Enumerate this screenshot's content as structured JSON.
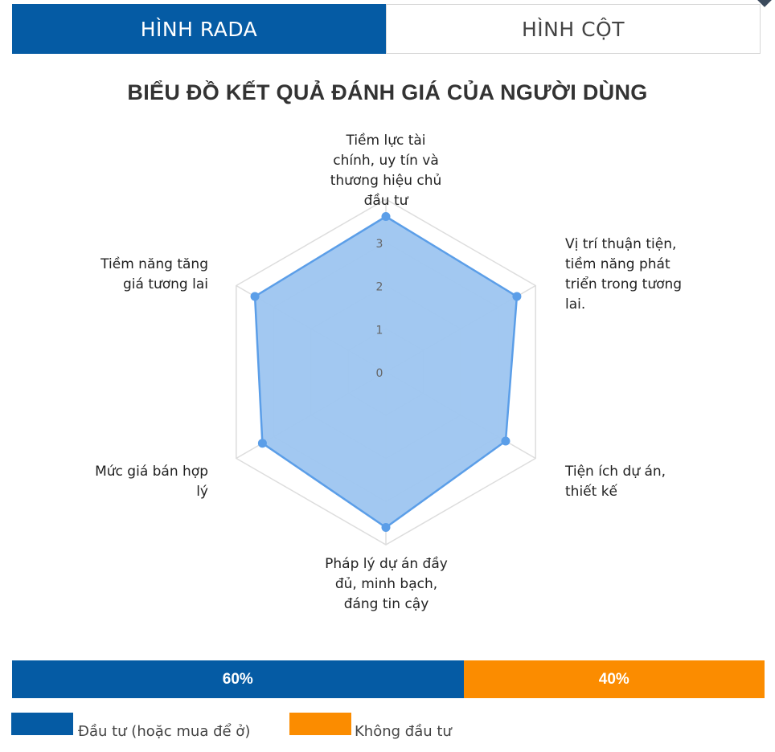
{
  "tabs": {
    "radar": "HÌNH RADA",
    "column": "HÌNH CỘT"
  },
  "chart_data": {
    "type": "radar",
    "title": "BIỂU ĐỒ KẾT QUẢ ĐÁNH GIÁ CỦA NGƯỜI DÙNG",
    "categories": [
      "Tiềm lực tài chính, uy tín và thương hiệu chủ đầu tư",
      "Vị trí thuận tiện, tiềm năng phát triển trong tương lai",
      "Tiện ích dự án, thiết kế",
      "Pháp lý dự án đầy đủ, minh bạch, đáng tin cậy",
      "Mức giá bán hợp lý",
      "Tiềm năng tăng giá tương lai"
    ],
    "category_lines": [
      [
        "Tiềm lực tài",
        "chính, uy tín và",
        "thương hiệu chủ",
        "đầu tư"
      ],
      [
        "Vị trí thuận tiện,",
        "tiềm năng phát",
        "triển trong tương",
        "lai."
      ],
      [
        "Tiện ích dự án,",
        "thiết kế"
      ],
      [
        "Pháp lý dự án đầy",
        "đủ, minh bạch,",
        "đáng tin cậy"
      ],
      [
        "Mức giá bán hợp",
        "lý"
      ],
      [
        "Tiềm năng tăng",
        "giá tương lai"
      ]
    ],
    "values": [
      3.6,
      3.5,
      3.2,
      3.6,
      3.3,
      3.5
    ],
    "ticks": [
      "0",
      "1",
      "2",
      "3"
    ],
    "scale_min": 0,
    "scale_max": 4,
    "fill_color": "#9dc5f0",
    "line_color": "#5b9ee8",
    "grid_color": "#dddddd"
  },
  "ratio": {
    "invest_percent": 60,
    "invest_label": "60%",
    "not_invest_percent": 40,
    "not_invest_label": "40%",
    "invest_color": "#055ba4",
    "not_invest_color": "#fb8c00"
  },
  "legend": {
    "invest": "Đầu tư (hoặc mua để ở)",
    "not_invest": "Không đầu tư"
  }
}
